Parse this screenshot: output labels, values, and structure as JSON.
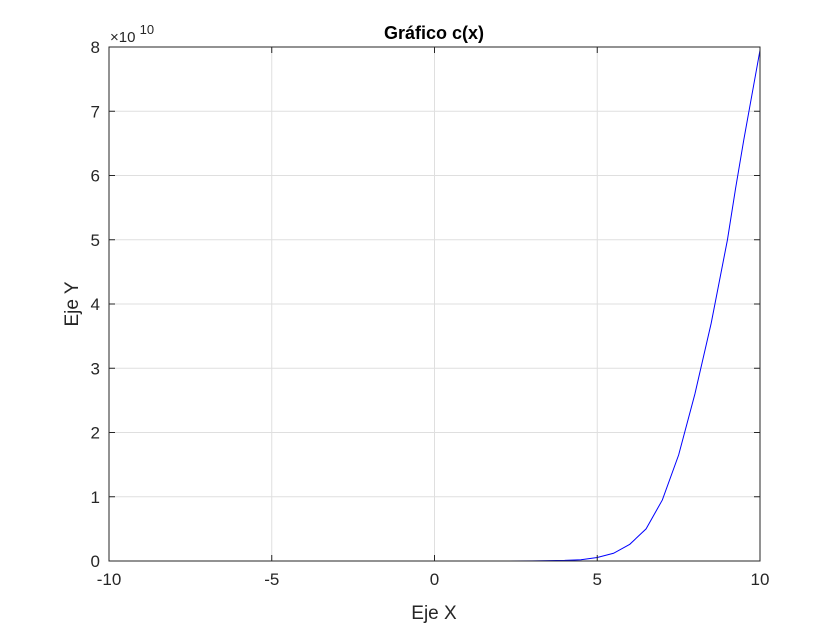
{
  "chart_data": {
    "type": "line",
    "title": "Gráfico c(x)",
    "xlabel": "Eje X",
    "ylabel": "Eje Y",
    "xlim": [
      -10,
      10
    ],
    "ylim": [
      0,
      8
    ],
    "y_multiplier_base": "×10",
    "y_multiplier_exponent": "10",
    "x_ticks": [
      -10,
      -5,
      0,
      5,
      10
    ],
    "x_tick_labels": [
      "-10",
      "-5",
      "0",
      "5",
      "10"
    ],
    "y_ticks": [
      0,
      1,
      2,
      3,
      4,
      5,
      6,
      7,
      8
    ],
    "y_tick_labels": [
      "0",
      "1",
      "2",
      "3",
      "4",
      "5",
      "6",
      "7",
      "8"
    ],
    "grid": true,
    "series": [
      {
        "color": "#0000ff",
        "x": [
          -10,
          -8,
          -6,
          -4,
          -2,
          0,
          1,
          2,
          3,
          4,
          4.5,
          5,
          5.5,
          6,
          6.5,
          7,
          7.5,
          8,
          8.5,
          9,
          9.25,
          9.5,
          9.75,
          10
        ],
        "y": [
          0,
          0,
          0,
          0,
          0,
          0,
          0.0001,
          0.0005,
          0.002,
          0.009,
          0.02,
          0.055,
          0.12,
          0.26,
          0.5,
          0.95,
          1.65,
          2.6,
          3.7,
          5.0,
          5.8,
          6.55,
          7.25,
          7.95
        ]
      }
    ]
  }
}
